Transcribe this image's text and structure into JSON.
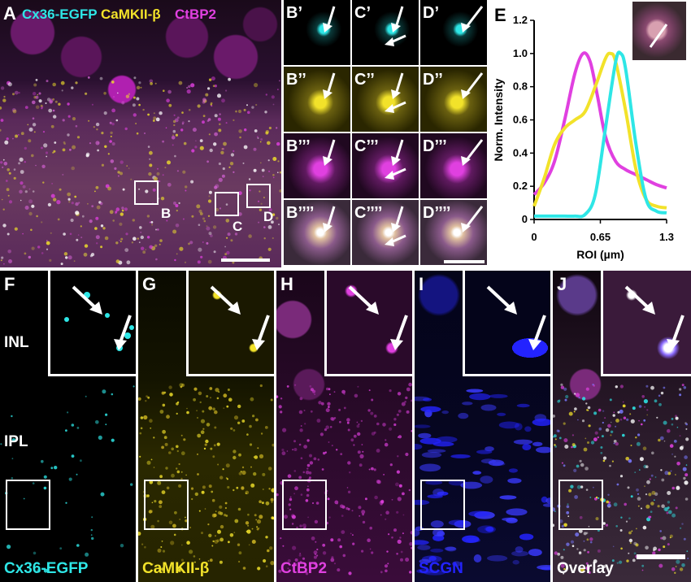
{
  "panelA": {
    "letter": "A",
    "channels": [
      {
        "text": "Cx36-EGFP",
        "color": "#2ee6e6"
      },
      {
        "text": "CaMKII-β",
        "color": "#f2e22a"
      },
      {
        "text": "CtBP2",
        "color": "#e040e0"
      }
    ],
    "box_labels": [
      "B",
      "C",
      "D"
    ]
  },
  "grid": {
    "rows": [
      [
        "B’",
        "C’",
        "D’"
      ],
      [
        "B’’",
        "C’’",
        "D’’"
      ],
      [
        "B’’’",
        "C’’’",
        "D’’’"
      ],
      [
        "B’’’’",
        "C’’’’",
        "D’’’’"
      ]
    ]
  },
  "chart_data": {
    "type": "line",
    "panel_letter": "E",
    "xlabel": "ROI (µm)",
    "ylabel": "Norm. Intensity",
    "xlim": [
      0,
      1.3
    ],
    "ylim": [
      0,
      1.2
    ],
    "x_ticks": [
      "0",
      "0.65",
      "1.3"
    ],
    "y_ticks": [
      "0",
      "0.2",
      "0.4",
      "0.6",
      "0.8",
      "1.0",
      "1.2"
    ],
    "grid": false,
    "legend": "none",
    "series": [
      {
        "color": "#e040e0",
        "x": [
          0,
          0.1,
          0.2,
          0.3,
          0.4,
          0.48,
          0.55,
          0.62,
          0.7,
          0.8,
          0.9,
          1.0,
          1.1,
          1.2,
          1.3
        ],
        "y": [
          0.15,
          0.22,
          0.35,
          0.6,
          0.88,
          1.0,
          0.95,
          0.75,
          0.5,
          0.35,
          0.3,
          0.27,
          0.24,
          0.21,
          0.19
        ]
      },
      {
        "color": "#f2e22a",
        "x": [
          0,
          0.1,
          0.2,
          0.3,
          0.4,
          0.5,
          0.6,
          0.7,
          0.75,
          0.8,
          0.9,
          1.0,
          1.1,
          1.2,
          1.3
        ],
        "y": [
          0.08,
          0.25,
          0.45,
          0.55,
          0.6,
          0.65,
          0.8,
          0.97,
          1.0,
          0.95,
          0.65,
          0.3,
          0.12,
          0.08,
          0.07
        ]
      },
      {
        "color": "#2ee6e6",
        "x": [
          0,
          0.1,
          0.2,
          0.3,
          0.4,
          0.5,
          0.6,
          0.7,
          0.8,
          0.85,
          0.9,
          1.0,
          1.1,
          1.2,
          1.3
        ],
        "y": [
          0.02,
          0.02,
          0.02,
          0.02,
          0.02,
          0.03,
          0.15,
          0.55,
          0.95,
          1.0,
          0.9,
          0.45,
          0.12,
          0.05,
          0.04
        ]
      }
    ]
  },
  "bottom": {
    "panels": [
      {
        "letter": "F",
        "label": "Cx36-EGFP",
        "color": "#2ee6e6"
      },
      {
        "letter": "G",
        "label": "CaMKII-β",
        "color": "#f2e22a"
      },
      {
        "letter": "H",
        "label": "CtBP2",
        "color": "#e040e0"
      },
      {
        "letter": "I",
        "label": "SCGN",
        "color": "#2323ff"
      },
      {
        "letter": "J",
        "label": "Overlay",
        "color": "#ffffff"
      }
    ],
    "layers": [
      "INL",
      "IPL"
    ]
  }
}
